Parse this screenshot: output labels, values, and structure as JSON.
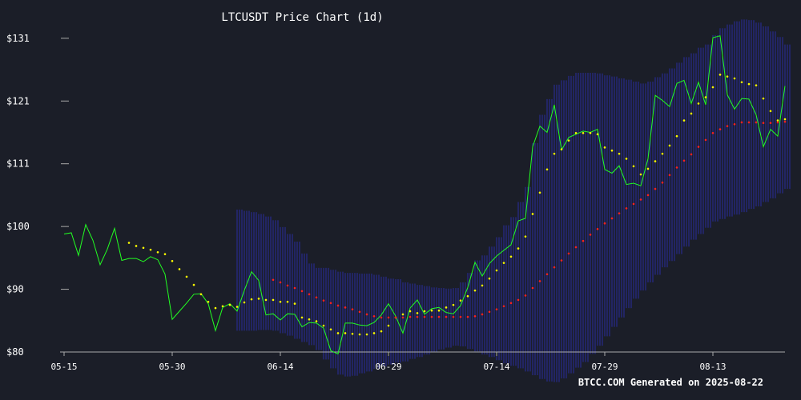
{
  "chart_data": {
    "type": "line",
    "title": "LTCUSDT Price Chart (1d)",
    "footer": "BTCC.COM Generated on 2025-08-22",
    "x_tick_labels": [
      "05-15",
      "05-30",
      "06-14",
      "06-29",
      "07-14",
      "07-29",
      "08-13"
    ],
    "y_tick_labels": [
      "$80",
      "$90",
      "$100",
      "$111",
      "$121",
      "$131"
    ],
    "y_ticks": [
      80,
      90,
      100,
      110,
      120,
      130
    ],
    "ylim": [
      80,
      131
    ],
    "x_start_date": "2025-05-15",
    "grid": false,
    "colors": {
      "background": "#1b1e28",
      "price": "#22ff22",
      "ma_short": "#ffff00",
      "ma_long": "#ff2222",
      "bands": "#2a2fb4",
      "axis": "#aaaaaa",
      "text": "#ffffff"
    },
    "series": [
      {
        "key": "price",
        "values": [
          98.8,
          99.0,
          95.4,
          100.3,
          97.8,
          93.9,
          96.4,
          99.7,
          94.6,
          94.9,
          94.9,
          94.4,
          95.2,
          94.7,
          92.4,
          85.2,
          86.5,
          87.8,
          89.2,
          89.3,
          87.7,
          83.4,
          87.1,
          87.7,
          86.5,
          89.8,
          92.8,
          91.4,
          85.9,
          86.1,
          85.1,
          86.1,
          86.0,
          84.0,
          84.7,
          84.6,
          83.8,
          80.2,
          79.7,
          84.6,
          84.6,
          84.3,
          84.2,
          84.7,
          85.9,
          87.7,
          85.7,
          83.0,
          87.0,
          88.3,
          86.0,
          86.9,
          87.1,
          86.3,
          86.1,
          87.4,
          90.3,
          94.3,
          92.1,
          94.1,
          95.3,
          96.2,
          97.1,
          100.9,
          101.3,
          112.7,
          116.0,
          115.0,
          119.4,
          112.2,
          114.2,
          114.7,
          115.2,
          115.0,
          115.5,
          109.1,
          108.5,
          109.7,
          106.7,
          106.9,
          106.5,
          110.8,
          120.9,
          120.1,
          119.1,
          122.8,
          123.3,
          119.6,
          123.0,
          119.4,
          130.1,
          130.4,
          121.0,
          118.7,
          120.4,
          120.3,
          117.8,
          112.7,
          115.5,
          114.4,
          122.4
        ]
      },
      {
        "key": "ma_short",
        "values": [
          null,
          null,
          null,
          null,
          null,
          null,
          null,
          null,
          null,
          97.4,
          96.9,
          96.6,
          96.3,
          95.9,
          95.6,
          94.5,
          93.2,
          92.0,
          90.7,
          89.2,
          88.0,
          87.0,
          87.3,
          87.5,
          87.2,
          87.9,
          88.4,
          88.5,
          88.3,
          88.3,
          88.0,
          88.0,
          87.7,
          85.5,
          85.2,
          84.9,
          84.2,
          83.6,
          83.0,
          83.0,
          82.9,
          82.8,
          82.8,
          83.0,
          83.3,
          84.2,
          85.5,
          86.0,
          86.5,
          86.2,
          86.5,
          86.6,
          86.6,
          87.1,
          87.5,
          88.2,
          88.9,
          89.8,
          90.6,
          91.7,
          93.0,
          94.2,
          95.2,
          96.5,
          98.4,
          102.0,
          105.4,
          109.1,
          111.6,
          112.3,
          113.7,
          114.9,
          114.9,
          114.9,
          114.7,
          112.6,
          112.1,
          111.6,
          110.8,
          109.6,
          108.3,
          109.2,
          110.4,
          111.6,
          112.9,
          114.4,
          116.9,
          118.0,
          119.6,
          120.6,
          122.2,
          124.2,
          123.9,
          123.6,
          123.0,
          122.7,
          122.5,
          120.4,
          118.4,
          116.9,
          117.1
        ]
      },
      {
        "key": "ma_long",
        "values": [
          null,
          null,
          null,
          null,
          null,
          null,
          null,
          null,
          null,
          null,
          null,
          null,
          null,
          null,
          null,
          null,
          null,
          null,
          null,
          null,
          null,
          null,
          null,
          null,
          null,
          null,
          null,
          null,
          null,
          91.5,
          91.1,
          90.6,
          90.2,
          89.7,
          89.2,
          88.7,
          88.2,
          87.8,
          87.4,
          87.1,
          86.8,
          86.4,
          86.0,
          85.7,
          85.5,
          85.5,
          85.5,
          85.5,
          85.6,
          85.6,
          85.6,
          85.6,
          85.6,
          85.6,
          85.6,
          85.6,
          85.6,
          85.7,
          86.0,
          86.4,
          86.8,
          87.3,
          87.8,
          88.3,
          89.0,
          90.2,
          91.3,
          92.4,
          93.5,
          94.6,
          95.7,
          96.7,
          97.7,
          98.7,
          99.6,
          100.5,
          101.3,
          102.1,
          102.9,
          103.6,
          104.3,
          105.0,
          106.0,
          107.0,
          108.2,
          109.4,
          110.5,
          111.5,
          112.7,
          113.8,
          114.9,
          115.5,
          116.0,
          116.3,
          116.6,
          116.6,
          116.6,
          116.5,
          116.5,
          116.6,
          116.7
        ]
      },
      {
        "key": "band_upper",
        "values": [
          null,
          null,
          null,
          null,
          null,
          null,
          null,
          null,
          null,
          null,
          null,
          null,
          null,
          null,
          null,
          null,
          null,
          null,
          null,
          null,
          null,
          null,
          null,
          null,
          102.7,
          102.5,
          102.3,
          102.0,
          101.6,
          101.0,
          99.9,
          98.8,
          97.6,
          95.7,
          94.1,
          93.4,
          93.4,
          93.1,
          92.8,
          92.6,
          92.6,
          92.5,
          92.5,
          92.3,
          92.0,
          91.7,
          91.6,
          91.1,
          90.9,
          90.7,
          90.5,
          90.3,
          90.2,
          90.1,
          90.2,
          91.1,
          92.6,
          94.6,
          95.4,
          96.8,
          98.3,
          100.2,
          101.5,
          103.9,
          106.3,
          113.3,
          117.8,
          120.3,
          122.6,
          123.3,
          124.0,
          124.5,
          124.5,
          124.5,
          124.4,
          124.1,
          123.9,
          123.6,
          123.4,
          123.1,
          122.8,
          123.1,
          123.8,
          124.4,
          125.2,
          126.1,
          127.0,
          127.6,
          128.5,
          129.0,
          130.5,
          131.6,
          132.2,
          132.7,
          133.0,
          132.9,
          132.5,
          131.9,
          131.1,
          130.2,
          129.0
        ]
      },
      {
        "key": "band_lower",
        "values": [
          null,
          null,
          null,
          null,
          null,
          null,
          null,
          null,
          null,
          null,
          null,
          null,
          null,
          null,
          null,
          null,
          null,
          null,
          null,
          null,
          null,
          null,
          null,
          null,
          83.4,
          83.4,
          83.4,
          83.5,
          83.5,
          83.4,
          83.0,
          82.6,
          82.1,
          81.6,
          81.1,
          80.3,
          78.8,
          77.4,
          76.4,
          76.1,
          76.2,
          76.6,
          76.9,
          77.3,
          77.7,
          78.0,
          78.3,
          78.5,
          78.9,
          79.2,
          79.6,
          80.0,
          80.4,
          80.7,
          81.0,
          80.9,
          80.5,
          80.1,
          79.6,
          79.2,
          78.7,
          78.2,
          77.8,
          77.4,
          76.9,
          76.3,
          75.7,
          75.3,
          75.2,
          75.8,
          76.6,
          77.5,
          78.4,
          79.7,
          81.0,
          82.5,
          84.0,
          85.5,
          87.0,
          88.5,
          89.8,
          91.1,
          92.3,
          93.5,
          94.5,
          95.6,
          96.8,
          97.9,
          98.8,
          99.8,
          100.8,
          101.2,
          101.6,
          101.9,
          102.3,
          102.8,
          103.2,
          103.9,
          104.5,
          105.3,
          106.0
        ]
      }
    ]
  }
}
